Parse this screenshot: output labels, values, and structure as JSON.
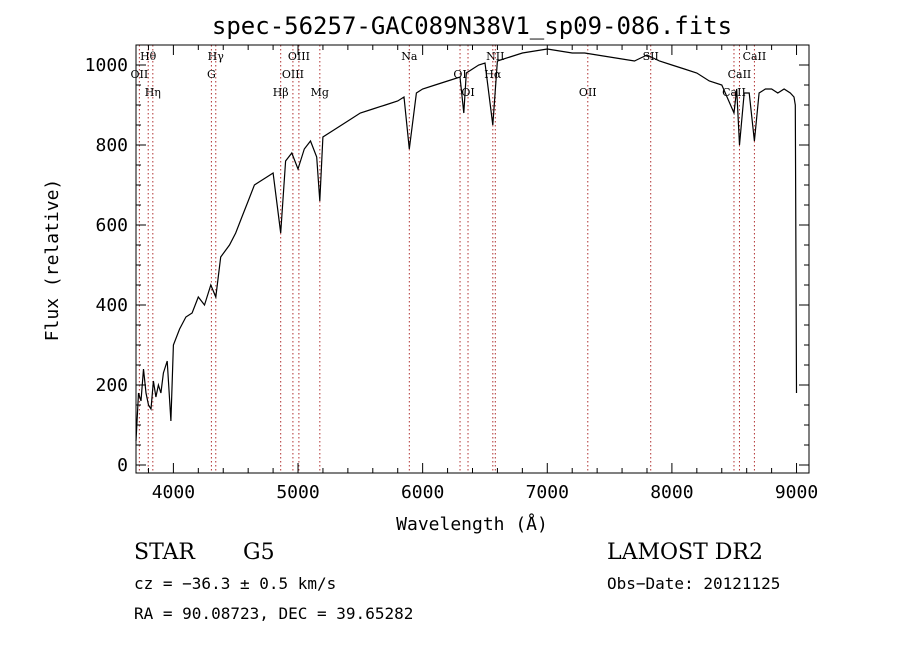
{
  "chart_data": {
    "type": "line",
    "title": "spec-56257-GAC089N38V1_sp09-086.fits",
    "xlabel": "Wavelength (Å)",
    "ylabel": "Flux (relative)",
    "xlim": [
      3700,
      9100
    ],
    "ylim": [
      -20,
      1050
    ],
    "xticks": [
      4000,
      5000,
      6000,
      7000,
      8000,
      9000
    ],
    "yticks": [
      0,
      200,
      400,
      600,
      800,
      1000
    ],
    "grid": false,
    "series": [
      {
        "color": "#000000",
        "x": [
          3700,
          3720,
          3740,
          3760,
          3780,
          3800,
          3820,
          3840,
          3860,
          3880,
          3900,
          3920,
          3950,
          3980,
          4000,
          4050,
          4100,
          4150,
          4200,
          4250,
          4300,
          4340,
          4380,
          4450,
          4500,
          4550,
          4600,
          4650,
          4700,
          4750,
          4800,
          4861,
          4900,
          4950,
          5000,
          5050,
          5100,
          5150,
          5175,
          5200,
          5300,
          5400,
          5500,
          5600,
          5700,
          5800,
          5850,
          5893,
          5950,
          6000,
          6100,
          6200,
          6300,
          6330,
          6350,
          6400,
          6450,
          6500,
          6563,
          6600,
          6700,
          6800,
          6900,
          7000,
          7100,
          7200,
          7300,
          7400,
          7500,
          7600,
          7700,
          7800,
          7900,
          8000,
          8100,
          8200,
          8300,
          8400,
          8498,
          8520,
          8542,
          8580,
          8620,
          8662,
          8700,
          8750,
          8800,
          8850,
          8900,
          8950,
          8980,
          8990,
          9000
        ],
        "y": [
          60,
          180,
          160,
          240,
          180,
          150,
          140,
          210,
          170,
          200,
          180,
          230,
          260,
          110,
          300,
          340,
          370,
          380,
          420,
          400,
          450,
          420,
          520,
          550,
          580,
          620,
          660,
          700,
          710,
          720,
          730,
          580,
          760,
          780,
          740,
          790,
          810,
          770,
          660,
          820,
          840,
          860,
          880,
          890,
          900,
          910,
          920,
          790,
          930,
          940,
          950,
          960,
          970,
          880,
          980,
          990,
          1000,
          1005,
          850,
          1010,
          1020,
          1030,
          1035,
          1040,
          1035,
          1030,
          1030,
          1025,
          1020,
          1015,
          1010,
          1025,
          1010,
          1000,
          990,
          980,
          960,
          950,
          880,
          940,
          800,
          930,
          930,
          810,
          930,
          940,
          940,
          930,
          940,
          930,
          920,
          900,
          180
        ]
      }
    ],
    "lines": [
      {
        "label": "Hθ",
        "x": 3798
      },
      {
        "label": "OII",
        "x": 3727
      },
      {
        "label": "Hη",
        "x": 3835
      },
      {
        "label": "Hγ",
        "x": 4340
      },
      {
        "label": "G",
        "x": 4305
      },
      {
        "label": "Hβ",
        "x": 4861
      },
      {
        "label": "OIII",
        "x": 5007
      },
      {
        "label": "OIII",
        "x": 4959
      },
      {
        "label": "Mg",
        "x": 5175
      },
      {
        "label": "Na",
        "x": 5893
      },
      {
        "label": "OI",
        "x": 6300
      },
      {
        "label": "OI",
        "x": 6364
      },
      {
        "label": "NII",
        "x": 6583
      },
      {
        "label": "Hα",
        "x": 6563
      },
      {
        "label": "OII",
        "x": 7325
      },
      {
        "label": "SII",
        "x": 7830
      },
      {
        "label": "CaII",
        "x": 8542
      },
      {
        "label": "CaII",
        "x": 8498
      },
      {
        "label": "CaII",
        "x": 8662
      }
    ]
  },
  "info": {
    "object_type": "STAR",
    "subclass": "G5",
    "survey": "LAMOST DR2",
    "cz": "cz = −36.3 ± 0.5 km/s",
    "obs_date": "Obs−Date: 20121125",
    "coords": "RA =  90.08723, DEC =  39.65282"
  }
}
